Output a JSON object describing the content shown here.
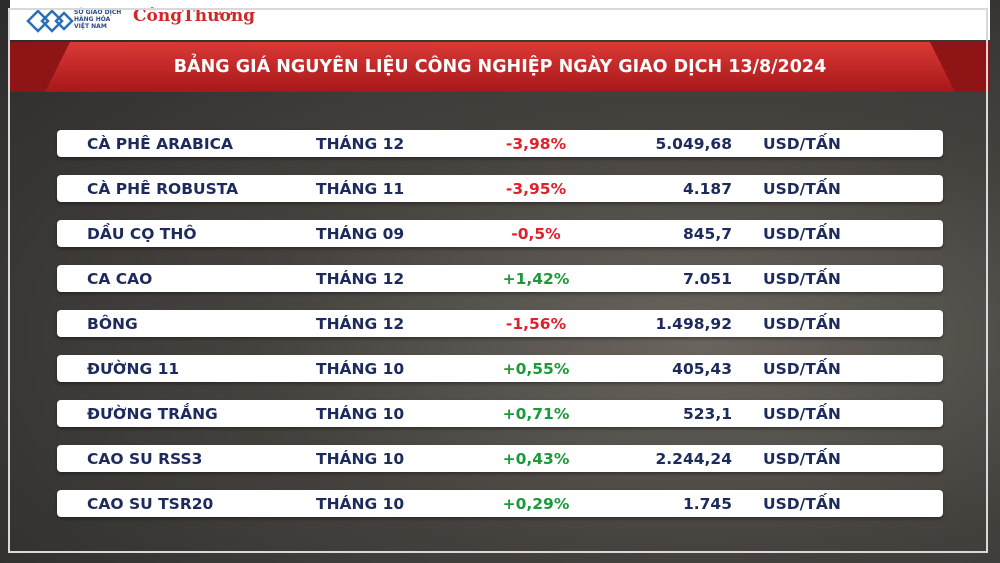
{
  "header": {
    "logo_lines": [
      "SỞ GIAO DỊCH",
      "HÀNG HÓA",
      "VIỆT NAM"
    ],
    "brand": "CôngThương",
    "title": "BẢNG GIÁ NGUYÊN LIỆU CÔNG NGHIỆP NGÀY GIAO DỊCH 13/8/2024"
  },
  "table": {
    "rows": [
      [
        "CÀ PHÊ ARABICA",
        "THÁNG 12",
        "-3,98%",
        "5.049,68",
        "USD/TẤN"
      ],
      [
        "CÀ PHÊ ROBUSTA",
        "THÁNG 11",
        "-3,95%",
        "4.187",
        "USD/TẤN"
      ],
      [
        "DẦU CỌ THÔ",
        "THÁNG 09",
        "-0,5%",
        "845,7",
        "USD/TẤN"
      ],
      [
        "CA CAO",
        "THÁNG 12",
        "+1,42%",
        "7.051",
        "USD/TẤN"
      ],
      [
        "BÔNG",
        "THÁNG 12",
        "-1,56%",
        "1.498,92",
        "USD/TẤN"
      ],
      [
        "ĐƯỜNG 11",
        "THÁNG 10",
        "+0,55%",
        "405,43",
        "USD/TẤN"
      ],
      [
        "ĐƯỜNG TRẮNG",
        "THÁNG 10",
        "+0,71%",
        "523,1",
        "USD/TẤN"
      ],
      [
        "CAO SU RSS3",
        "THÁNG 10",
        "+0,43%",
        "2.244,24",
        "USD/TẤN"
      ],
      [
        "CAO SU TSR20",
        "THÁNG 10",
        "+0,29%",
        "1.745",
        "USD/TẤN"
      ]
    ]
  }
}
